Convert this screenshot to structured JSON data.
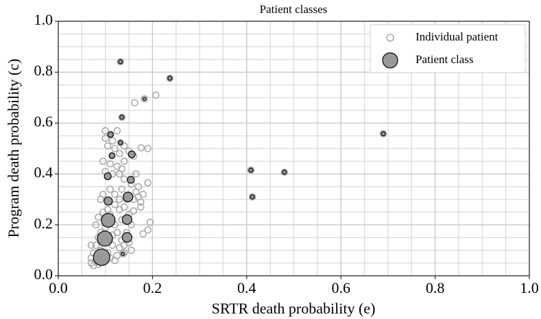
{
  "chart_data": {
    "type": "scatter",
    "title": "Patient classes",
    "x_label": "SRTR death probability (e)",
    "y_label": "Program death probability (c)",
    "xlim": [
      0,
      1
    ],
    "ylim": [
      0,
      1
    ],
    "xticks": [
      {
        "value": 0,
        "label": "0.0"
      },
      0.2,
      0.4,
      0.6,
      0.8,
      {
        "value": 1,
        "label": "1.0"
      }
    ],
    "yticks": [
      {
        "value": 0,
        "label": "0.0"
      },
      0.2,
      0.4,
      0.6,
      0.8,
      {
        "value": 1,
        "label": "1.0"
      }
    ],
    "x_minor_ticks": [
      0.05,
      0.1,
      0.15,
      0.25,
      0.3,
      0.35,
      0.45,
      0.5,
      0.55,
      0.65,
      0.7,
      0.75,
      0.85,
      0.9,
      0.95
    ],
    "y_minor_ticks": [
      0.05,
      0.1,
      0.15,
      0.25,
      0.3,
      0.35,
      0.45,
      0.5,
      0.55,
      0.65,
      0.7,
      0.75,
      0.85,
      0.9,
      0.95
    ],
    "grid": true,
    "legend": "upper right",
    "series": [
      {
        "name": "Individual patient",
        "color": "#aaaaaa",
        "filled": false,
        "x": [
          0.07,
          0.07,
          0.075,
          0.08,
          0.085,
          0.075,
          0.08,
          0.07,
          0.09,
          0.095,
          0.1,
          0.105,
          0.11,
          0.12,
          0.125,
          0.13,
          0.115,
          0.085,
          0.09,
          0.1,
          0.08,
          0.085,
          0.095,
          0.11,
          0.12,
          0.125,
          0.135,
          0.14,
          0.15,
          0.145,
          0.135,
          0.13,
          0.12,
          0.09,
          0.095,
          0.11,
          0.12,
          0.13,
          0.135,
          0.14,
          0.15,
          0.155,
          0.16,
          0.165,
          0.17,
          0.155,
          0.14,
          0.13,
          0.115,
          0.1,
          0.095,
          0.11,
          0.125,
          0.135,
          0.14,
          0.13,
          0.12,
          0.105,
          0.1,
          0.115,
          0.125,
          0.1,
          0.14,
          0.15,
          0.16,
          0.165,
          0.17,
          0.175,
          0.145,
          0.105,
          0.095,
          0.115,
          0.14,
          0.155,
          0.132,
          0.237,
          0.183,
          0.162,
          0.207,
          0.135,
          0.409,
          0.412,
          0.48,
          0.69,
          0.176,
          0.19,
          0.19,
          0.195,
          0.18,
          0.19,
          0.16,
          0.175,
          0.18,
          0.092,
          0.099,
          0.106,
          0.146,
          0.146,
          0.148,
          0.106,
          0.154,
          0.105,
          0.156,
          0.114,
          0.111,
          0.132,
          0.137
        ],
        "values": [
          0.05,
          0.07,
          0.04,
          0.06,
          0.045,
          0.09,
          0.12,
          0.12,
          0.1,
          0.08,
          0.06,
          0.09,
          0.07,
          0.06,
          0.08,
          0.11,
          0.12,
          0.15,
          0.17,
          0.19,
          0.2,
          0.23,
          0.25,
          0.24,
          0.2,
          0.17,
          0.14,
          0.12,
          0.13,
          0.17,
          0.22,
          0.26,
          0.28,
          0.3,
          0.32,
          0.34,
          0.32,
          0.3,
          0.34,
          0.27,
          0.24,
          0.2,
          0.3,
          0.33,
          0.35,
          0.36,
          0.38,
          0.4,
          0.4,
          0.41,
          0.45,
          0.44,
          0.43,
          0.42,
          0.45,
          0.48,
          0.5,
          0.51,
          0.54,
          0.53,
          0.57,
          0.57,
          0.51,
          0.49,
          0.47,
          0.4,
          0.31,
          0.27,
          0.3,
          0.26,
          0.13,
          0.16,
          0.09,
          0.1,
          0.841,
          0.776,
          0.695,
          0.68,
          0.71,
          0.623,
          0.415,
          0.31,
          0.407,
          0.558,
          0.503,
          0.5,
          0.365,
          0.21,
          0.165,
          0.18,
          0.255,
          0.29,
          0.32,
          0.073,
          0.146,
          0.218,
          0.151,
          0.221,
          0.31,
          0.294,
          0.377,
          0.391,
          0.477,
          0.472,
          0.555,
          0.523,
          0.086
        ]
      },
      {
        "name": "Patient class",
        "color": "#999999",
        "filled": true,
        "x": [
          0.092,
          0.099,
          0.106,
          0.146,
          0.146,
          0.148,
          0.106,
          0.154,
          0.105,
          0.156,
          0.114,
          0.111,
          0.132,
          0.135,
          0.132,
          0.237,
          0.183,
          0.137,
          0.409,
          0.412,
          0.48,
          0.69
        ],
        "values": [
          0.073,
          0.146,
          0.218,
          0.151,
          0.221,
          0.31,
          0.294,
          0.377,
          0.391,
          0.477,
          0.472,
          0.555,
          0.523,
          0.623,
          0.841,
          0.776,
          0.695,
          0.086,
          0.415,
          0.31,
          0.407,
          0.558
        ],
        "sizes": [
          144,
          121,
          100,
          49,
          49,
          49,
          36,
          25,
          25,
          25,
          16,
          16,
          9,
          9,
          9,
          9,
          6,
          6,
          9,
          9,
          9,
          9
        ]
      }
    ]
  }
}
